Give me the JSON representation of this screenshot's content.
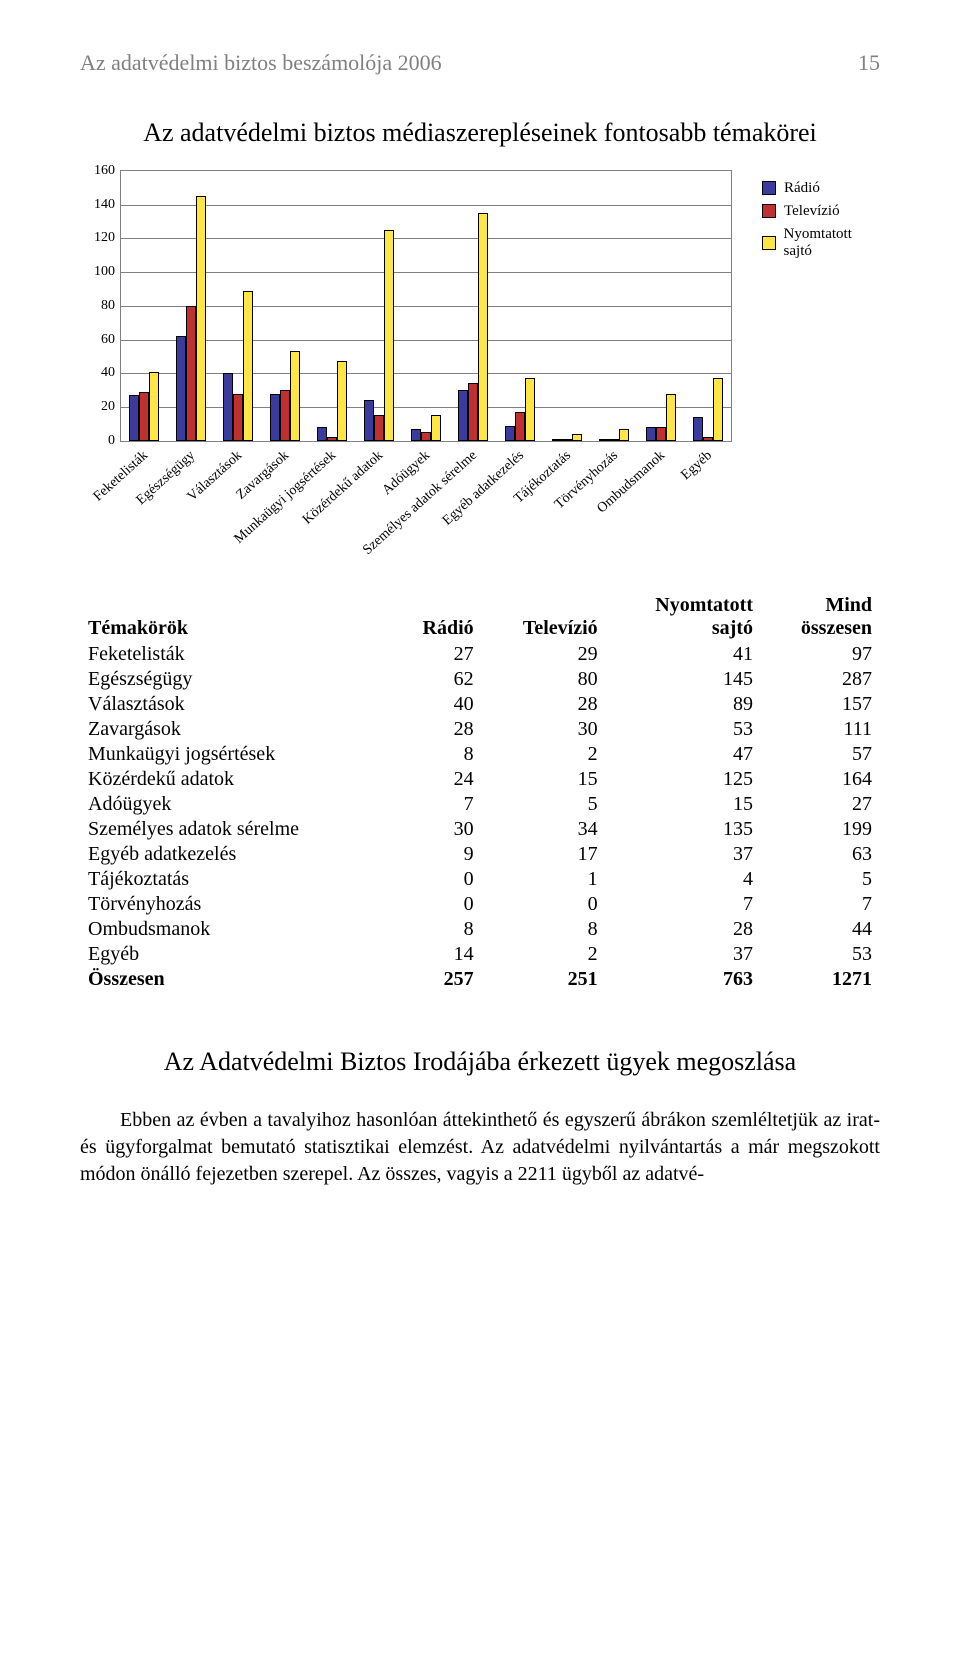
{
  "header": {
    "running_title": "Az adatvédelmi biztos beszámolója 2006",
    "page_number": "15"
  },
  "chart": {
    "title": "Az adatvédelmi biztos médiaszerepléseinek fontosabb témakörei",
    "type": "bar",
    "ylim": [
      0,
      160
    ],
    "ytick_step": 20,
    "yticks": [
      0,
      20,
      40,
      60,
      80,
      100,
      120,
      140,
      160
    ],
    "categories": [
      "Feketelisták",
      "Egészségügy",
      "Választások",
      "Zavargások",
      "Munkaügyi jogsértések",
      "Közérdekű adatok",
      "Adóügyek",
      "Személyes adatok sérelme",
      "Egyéb adatkezelés",
      "Tájékoztatás",
      "Törvényhozás",
      "Ombudsmanok",
      "Egyéb"
    ],
    "series": [
      {
        "name": "Rádió",
        "color": "#3b3b9e",
        "values": [
          27,
          62,
          40,
          28,
          8,
          24,
          7,
          30,
          9,
          0,
          0,
          8,
          14
        ]
      },
      {
        "name": "Televízió",
        "color": "#c03030",
        "values": [
          29,
          80,
          28,
          30,
          2,
          15,
          5,
          34,
          17,
          1,
          0,
          8,
          2
        ]
      },
      {
        "name": "Nyomtatott sajtó",
        "color": "#ffe645",
        "values": [
          41,
          145,
          89,
          53,
          47,
          125,
          15,
          135,
          37,
          4,
          7,
          28,
          37
        ]
      }
    ],
    "label_fontsize": 14,
    "grid_color": "#808080",
    "background_color": "#ffffff"
  },
  "table": {
    "columns": [
      "Témakörök",
      "Rádió",
      "Televízió",
      "Nyomtatott sajtó",
      "Mind összesen"
    ],
    "rows": [
      [
        "Feketelisták",
        "27",
        "29",
        "41",
        "97"
      ],
      [
        "Egészségügy",
        "62",
        "80",
        "145",
        "287"
      ],
      [
        "Választások",
        "40",
        "28",
        "89",
        "157"
      ],
      [
        "Zavargások",
        "28",
        "30",
        "53",
        "111"
      ],
      [
        "Munkaügyi jogsértések",
        "8",
        "2",
        "47",
        "57"
      ],
      [
        "Közérdekű adatok",
        "24",
        "15",
        "125",
        "164"
      ],
      [
        "Adóügyek",
        "7",
        "5",
        "15",
        "27"
      ],
      [
        "Személyes adatok sérelme",
        "30",
        "34",
        "135",
        "199"
      ],
      [
        "Egyéb adatkezelés",
        "9",
        "17",
        "37",
        "63"
      ],
      [
        "Tájékoztatás",
        "0",
        "1",
        "4",
        "5"
      ],
      [
        "Törvényhozás",
        "0",
        "0",
        "7",
        "7"
      ],
      [
        "Ombudsmanok",
        "8",
        "8",
        "28",
        "44"
      ],
      [
        "Egyéb",
        "14",
        "2",
        "37",
        "53"
      ]
    ],
    "total_row": [
      "Összesen",
      "257",
      "251",
      "763",
      "1271"
    ]
  },
  "section": {
    "title": "Az Adatvédelmi Biztos Irodájába érkezett ügyek megoszlása",
    "body": "Ebben az évben a tavalyihoz hasonlóan áttekinthető és egyszerű ábrákon szemléltetjük az irat- és ügyforgalmat bemutató statisztikai elemzést. Az adatvédelmi nyilvántartás a már megszokott módon önálló fejezetben szerepel. Az összes, vagyis a 2211 ügyből az adatvé-"
  }
}
